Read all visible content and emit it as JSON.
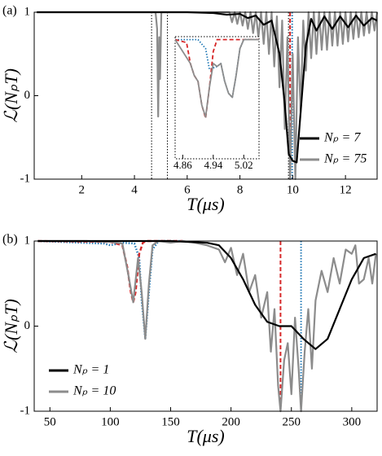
{
  "chart_data": [
    {
      "type": "line",
      "panel_label": "(a)",
      "x_label": "T(μs)",
      "y_label": "ℒ(NₚT)",
      "xlim": [
        0.2,
        13.2
      ],
      "ylim": [
        -1,
        1
      ],
      "xticks": [
        2,
        4,
        6,
        8,
        10,
        12
      ],
      "yticks": [
        -1,
        0,
        1
      ],
      "legend": "lower right",
      "vlines": [
        {
          "x": 4.65,
          "color": "#000000",
          "style": "dotted"
        },
        {
          "x": 5.25,
          "color": "#000000",
          "style": "dotted"
        },
        {
          "x": 9.84,
          "color": "#000000",
          "style": "dotted"
        },
        {
          "x": 9.9,
          "color": "#d62728",
          "style": "dashed"
        },
        {
          "x": 9.98,
          "color": "#1f77b4",
          "style": "dotted"
        }
      ],
      "series": [
        {
          "name": "Nₚ = 7",
          "color": "#000000",
          "style": "solid",
          "x": [
            0.3,
            2,
            4,
            6,
            7,
            7.5,
            8,
            8.3,
            8.6,
            8.9,
            9.2,
            9.5,
            9.7,
            9.85,
            10,
            10.15,
            10.3,
            10.5,
            10.7,
            10.9,
            11.2,
            11.5,
            11.8,
            12.1,
            12.4,
            12.7,
            13,
            13.2
          ],
          "values": [
            1,
            1,
            1,
            1,
            0.99,
            0.97,
            0.98,
            0.93,
            0.96,
            0.85,
            0.9,
            0.5,
            -0.1,
            -0.7,
            -0.78,
            -0.8,
            -0.2,
            0.6,
            0.92,
            0.78,
            0.95,
            0.8,
            0.95,
            0.82,
            0.96,
            0.84,
            0.93,
            0.9
          ]
        },
        {
          "name": "Nₚ = 75",
          "color": "#8c8c8c",
          "style": "solid",
          "x": [
            0.3,
            4.8,
            4.86,
            4.9,
            4.94,
            4.97,
            5.02,
            7.5,
            7.6,
            7.7,
            7.8,
            7.9,
            8.0,
            8.1,
            8.2,
            8.3,
            8.4,
            8.5,
            8.6,
            8.7,
            8.8,
            8.9,
            9.0,
            9.1,
            9.2,
            9.3,
            9.4,
            9.5,
            9.6,
            9.7,
            9.8,
            9.9,
            10.0,
            10.1,
            10.2,
            10.3,
            10.4,
            10.5,
            10.6,
            10.7,
            10.8,
            10.9,
            11.0,
            11.1,
            11.2,
            11.3,
            11.4,
            11.5,
            11.6,
            11.7,
            11.8,
            11.9,
            12.0,
            12.1,
            12.2,
            12.3,
            12.4,
            12.5,
            12.6,
            12.7,
            12.8,
            12.9,
            13.0,
            13.1,
            13.2
          ],
          "values": [
            1,
            1,
            0.8,
            -0.25,
            0.7,
            0.2,
            1,
            1,
            1,
            0.88,
            1,
            0.86,
            1,
            0.84,
            1,
            0.8,
            1,
            0.75,
            1,
            0.7,
            1,
            0.62,
            1,
            0.5,
            1,
            0.35,
            0.95,
            0.1,
            0.9,
            -0.4,
            0.7,
            -1,
            0.5,
            -1,
            0.7,
            -0.2,
            0.9,
            0.3,
            1,
            0.45,
            1,
            0.5,
            1,
            0.55,
            1,
            0.55,
            1,
            0.6,
            1,
            0.6,
            1,
            0.62,
            1,
            0.65,
            1,
            0.68,
            1,
            0.7,
            1,
            0.72,
            1,
            0.75,
            1,
            0.78,
            1
          ]
        }
      ]
    },
    {
      "type": "line",
      "panel_label": "(b)",
      "x_label": "T(μs)",
      "y_label": "ℒ(NₚT)",
      "xlim": [
        37,
        321
      ],
      "ylim": [
        -1,
        1
      ],
      "xticks": [
        50,
        100,
        150,
        200,
        250,
        300
      ],
      "yticks": [
        -1,
        0,
        1
      ],
      "legend": "lower left",
      "vlines": [
        {
          "x": 241,
          "color": "#d62728",
          "style": "dashed"
        },
        {
          "x": 258,
          "color": "#1f77b4",
          "style": "dotted"
        }
      ],
      "series": [
        {
          "name": "Nₚ = 1",
          "color": "#000000",
          "style": "solid",
          "x": [
            40,
            100,
            150,
            180,
            190,
            200,
            210,
            220,
            230,
            240,
            250,
            260,
            270,
            280,
            290,
            300,
            310,
            320
          ],
          "values": [
            1,
            1,
            1,
            0.98,
            0.95,
            0.8,
            0.55,
            0.25,
            0.05,
            0.0,
            0.0,
            -0.15,
            -0.27,
            -0.15,
            0.2,
            0.55,
            0.8,
            0.85
          ]
        },
        {
          "name": "Nₚ = 10",
          "color": "#8c8c8c",
          "style": "solid",
          "x": [
            40,
            80,
            100,
            110,
            115,
            119,
            123,
            126,
            129,
            132,
            135,
            140,
            150,
            160,
            170,
            180,
            190,
            195,
            200,
            205,
            210,
            215,
            220,
            225,
            230,
            233,
            236,
            239,
            241,
            244,
            247,
            250,
            253,
            256,
            258,
            261,
            264,
            267,
            270,
            275,
            280,
            285,
            290,
            295,
            300,
            303,
            306,
            310,
            314,
            317,
            320
          ],
          "values": [
            1,
            1,
            0.99,
            0.97,
            0.6,
            0.28,
            0.8,
            0.4,
            -0.15,
            0.5,
            0.95,
            1,
            0.98,
            1,
            0.98,
            0.95,
            0.9,
            0.75,
            0.92,
            0.6,
            0.85,
            0.4,
            0.6,
            0.1,
            0.4,
            -0.3,
            0.2,
            -0.7,
            -1,
            -0.4,
            -0.2,
            -0.8,
            0.1,
            -0.5,
            -1,
            -0.3,
            0.2,
            -0.5,
            0.3,
            0.65,
            0.4,
            0.8,
            0.5,
            0.9,
            0.85,
            0.95,
            0.5,
            0.55,
            0.8,
            0.5,
            0.85
          ]
        },
        {
          "color": "#d62728",
          "style": "dashed",
          "x": [
            40,
            100,
            110,
            114,
            117,
            119,
            121,
            124,
            127,
            130,
            160
          ],
          "values": [
            1,
            0.99,
            0.95,
            0.7,
            0.4,
            0.28,
            0.4,
            0.85,
            0.98,
            1,
            1
          ]
        },
        {
          "color": "#1f77b4",
          "style": "dotted",
          "x": [
            40,
            95,
            100,
            110,
            120,
            124,
            126,
            129,
            132,
            135,
            140,
            160
          ],
          "values": [
            1,
            0.97,
            0.95,
            0.98,
            0.97,
            0.8,
            0.3,
            -0.15,
            0.4,
            0.9,
            1,
            1
          ]
        }
      ]
    },
    {
      "type": "line",
      "xlim": [
        4.84,
        5.06
      ],
      "ylim": [
        -1,
        1.05
      ],
      "xticks": [
        4.86,
        4.94,
        5.02
      ],
      "series": [
        {
          "color": "#8c8c8c",
          "style": "solid",
          "x": [
            4.84,
            4.88,
            4.89,
            4.9,
            4.91,
            4.92,
            4.93,
            4.94,
            4.95,
            4.96,
            4.97,
            4.98,
            4.99,
            5.0,
            5.01,
            5.02,
            5.06
          ],
          "values": [
            1,
            0.6,
            0.4,
            0.3,
            -0.1,
            -0.3,
            0.2,
            0.6,
            0.55,
            0.6,
            0.3,
            0.1,
            0.03,
            0.4,
            0.85,
            1,
            1
          ]
        },
        {
          "color": "#d62728",
          "style": "dashed",
          "x": [
            4.84,
            4.87,
            4.88,
            4.89,
            4.9,
            4.91,
            4.92,
            4.93,
            4.94,
            4.95,
            5.06
          ],
          "values": [
            1,
            0.95,
            0.6,
            0.4,
            0.3,
            -0.1,
            -0.32,
            0.2,
            0.8,
            1,
            1
          ]
        },
        {
          "color": "#1f77b4",
          "style": "dotted",
          "x": [
            4.84,
            4.9,
            4.92,
            4.93,
            4.95,
            4.96,
            4.97,
            4.98,
            4.99,
            5.0,
            5.01,
            5.02,
            5.06
          ],
          "values": [
            1,
            1,
            0.85,
            0.5,
            0.55,
            0.6,
            0.3,
            0.1,
            0.03,
            0.4,
            0.85,
            1,
            1
          ]
        }
      ]
    }
  ]
}
